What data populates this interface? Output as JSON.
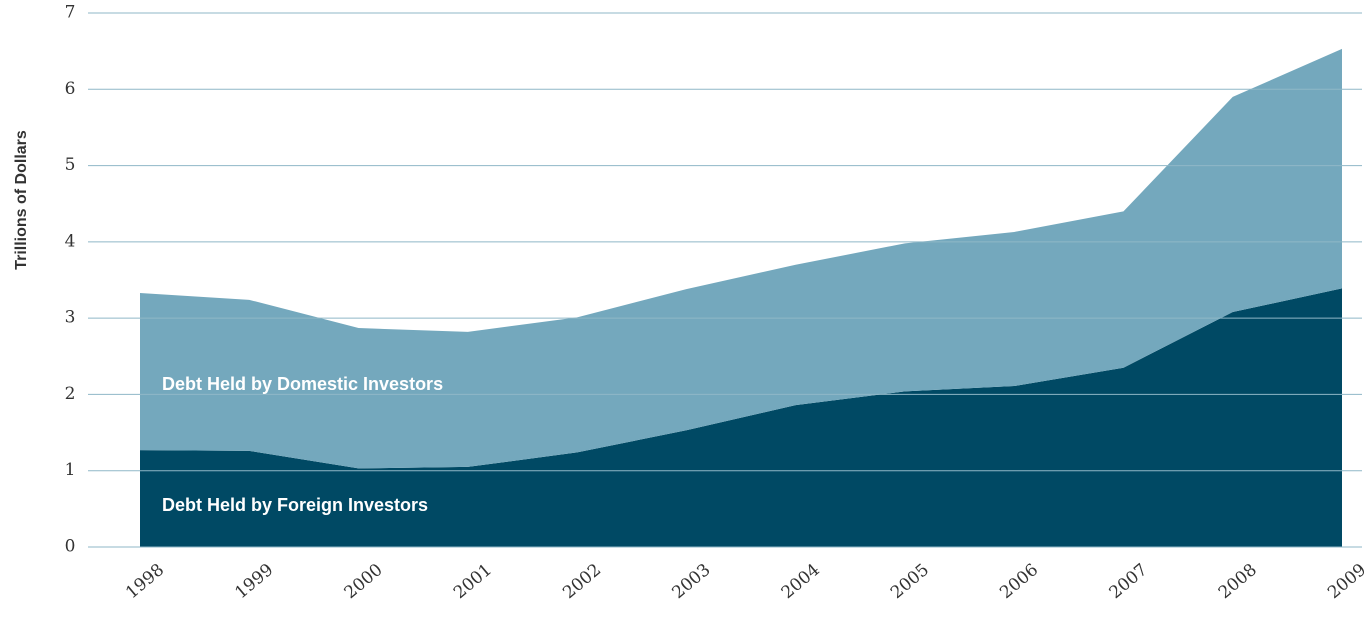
{
  "chart_data": {
    "type": "area",
    "stacked": true,
    "y_label": "Trillions of Dollars",
    "categories": [
      "1998",
      "1999",
      "2000",
      "2001",
      "2002",
      "2003",
      "2004",
      "2005",
      "2006",
      "2007",
      "2008",
      "2009"
    ],
    "series": [
      {
        "name": "Debt Held by Foreign Investors",
        "color": "#004964",
        "values": [
          1.27,
          1.26,
          1.03,
          1.05,
          1.24,
          1.53,
          1.86,
          2.04,
          2.11,
          2.35,
          3.08,
          3.39
        ]
      },
      {
        "name": "Debt Held by Domestic Investors",
        "color": "#74a8bd",
        "values": [
          2.06,
          1.98,
          1.84,
          1.77,
          1.77,
          1.85,
          1.84,
          1.94,
          2.02,
          2.05,
          2.82,
          3.14
        ]
      }
    ],
    "ylim": [
      0,
      7
    ],
    "yticks": [
      0,
      1,
      2,
      3,
      4,
      5,
      6,
      7
    ],
    "grid": true
  }
}
